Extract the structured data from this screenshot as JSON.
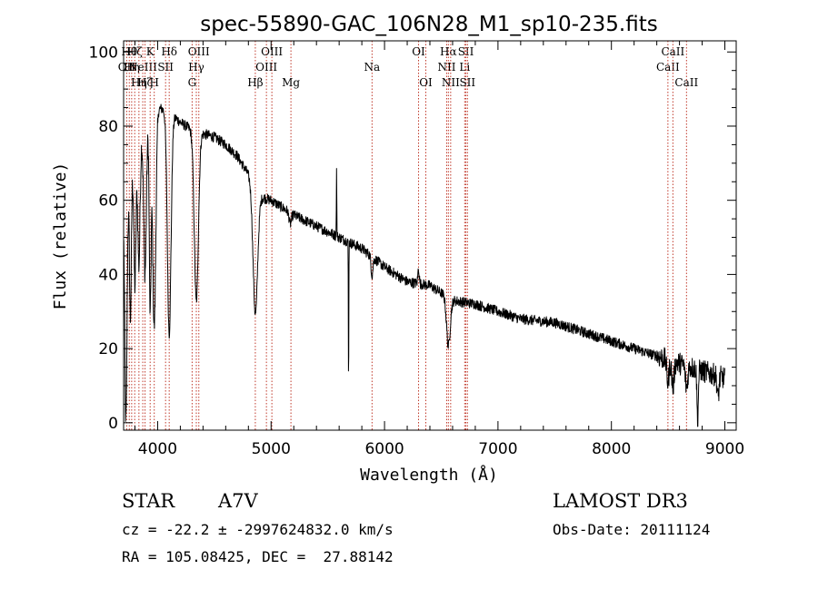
{
  "chart_data": {
    "type": "line",
    "title": "spec-55890-GAC_106N28_M1_sp10-235.fits",
    "xlabel": "Wavelength (Å)",
    "ylabel": "Flux (relative)",
    "xlim": [
      3700,
      9100
    ],
    "ylim": [
      -2,
      103
    ],
    "xticks": [
      4000,
      5000,
      6000,
      7000,
      8000,
      9000
    ],
    "yticks": [
      0,
      20,
      40,
      60,
      80,
      100
    ],
    "continuum": [
      [
        3720,
        60
      ],
      [
        3800,
        72
      ],
      [
        3900,
        82
      ],
      [
        4000,
        85
      ],
      [
        4100,
        84
      ],
      [
        4200,
        81
      ],
      [
        4300,
        79
      ],
      [
        4400,
        78
      ],
      [
        4500,
        77
      ],
      [
        4600,
        75
      ],
      [
        4700,
        72
      ],
      [
        4800,
        67
      ],
      [
        4900,
        61
      ],
      [
        5000,
        60
      ],
      [
        5200,
        56
      ],
      [
        5400,
        53
      ],
      [
        5600,
        50
      ],
      [
        5800,
        47
      ],
      [
        6000,
        42
      ],
      [
        6200,
        38
      ],
      [
        6400,
        37
      ],
      [
        6600,
        33
      ],
      [
        6800,
        32
      ],
      [
        7000,
        30
      ],
      [
        7200,
        28
      ],
      [
        7500,
        27
      ],
      [
        7800,
        24
      ],
      [
        8000,
        22
      ],
      [
        8200,
        20
      ],
      [
        8400,
        18
      ],
      [
        8600,
        16
      ],
      [
        8800,
        14
      ],
      [
        9000,
        12
      ]
    ],
    "features": [
      {
        "x": 3720,
        "depth": 60,
        "width": 10
      },
      {
        "x": 3760,
        "depth": 38,
        "width": 8
      },
      {
        "x": 3800,
        "depth": 35,
        "width": 9
      },
      {
        "x": 3835,
        "depth": 33,
        "width": 10
      },
      {
        "x": 3889,
        "depth": 40,
        "width": 12
      },
      {
        "x": 3934,
        "depth": 52,
        "width": 8
      },
      {
        "x": 3970,
        "depth": 58,
        "width": 14
      },
      {
        "x": 4102,
        "depth": 60,
        "width": 16
      },
      {
        "x": 4341,
        "depth": 46,
        "width": 18
      },
      {
        "x": 4861,
        "depth": 34,
        "width": 20
      },
      {
        "x": 5169,
        "depth": 3,
        "width": 10
      },
      {
        "x": 5890,
        "depth": 5,
        "width": 8
      },
      {
        "x": 5683,
        "depth": 40,
        "width": 2
      },
      {
        "x": 5577,
        "depth": -18,
        "width": 2
      },
      {
        "x": 6300,
        "depth": -4,
        "width": 6
      },
      {
        "x": 6563,
        "depth": 13,
        "width": 16
      },
      {
        "x": 8498,
        "depth": 6,
        "width": 10
      },
      {
        "x": 8542,
        "depth": 7,
        "width": 10
      },
      {
        "x": 8662,
        "depth": 6,
        "width": 10
      },
      {
        "x": 8760,
        "depth": 14,
        "width": 6
      },
      {
        "x": 8940,
        "depth": 6,
        "width": 8
      }
    ],
    "noise": 1.4,
    "line_markers": [
      {
        "x": 3727,
        "label": "OII",
        "row": 2
      },
      {
        "x": 3750,
        "label": "Hθ",
        "row": 1
      },
      {
        "x": 3771,
        "label": "Hη",
        "row": 2
      },
      {
        "x": 3798,
        "label": "Hζ",
        "row": 1
      },
      {
        "x": 3835,
        "label": "Hη",
        "row": 3
      },
      {
        "x": 3869,
        "label": "NeIII",
        "row": 2
      },
      {
        "x": 3889,
        "label": "Hζ",
        "row": 3
      },
      {
        "x": 3934,
        "label": "K",
        "row": 1
      },
      {
        "x": 3970,
        "label": "H",
        "row": 3
      },
      {
        "x": 4070,
        "label": "SII",
        "row": 2
      },
      {
        "x": 4102,
        "label": "Hδ",
        "row": 1
      },
      {
        "x": 4304,
        "label": "G",
        "row": 3
      },
      {
        "x": 4341,
        "label": "Hγ",
        "row": 2
      },
      {
        "x": 4363,
        "label": "OIII",
        "row": 1
      },
      {
        "x": 4861,
        "label": "Hβ",
        "row": 3
      },
      {
        "x": 4959,
        "label": "OIII",
        "row": 2
      },
      {
        "x": 5007,
        "label": "OIII",
        "row": 1
      },
      {
        "x": 5175,
        "label": "Mg",
        "row": 3
      },
      {
        "x": 5890,
        "label": "Na",
        "row": 2
      },
      {
        "x": 6300,
        "label": "OI",
        "row": 1
      },
      {
        "x": 6364,
        "label": "OI",
        "row": 3
      },
      {
        "x": 6548,
        "label": "NII",
        "row": 2
      },
      {
        "x": 6563,
        "label": "Hα",
        "row": 1
      },
      {
        "x": 6583,
        "label": "NII",
        "row": 3
      },
      {
        "x": 6707,
        "label": "Li",
        "row": 2
      },
      {
        "x": 6717,
        "label": "SII",
        "row": 1
      },
      {
        "x": 6731,
        "label": "SII",
        "row": 3
      },
      {
        "x": 8498,
        "label": "CaII",
        "row": 2
      },
      {
        "x": 8542,
        "label": "CaII",
        "row": 1
      },
      {
        "x": 8662,
        "label": "CaII",
        "row": 3
      }
    ]
  },
  "info": {
    "class": "STAR",
    "subclass": "A7V",
    "survey": "LAMOST DR3",
    "cz": "cz = -22.2 ± -2997624832.0 km/s",
    "obs_date": "Obs-Date: 20111124",
    "radec": "RA = 105.08425, DEC =  27.88142"
  }
}
